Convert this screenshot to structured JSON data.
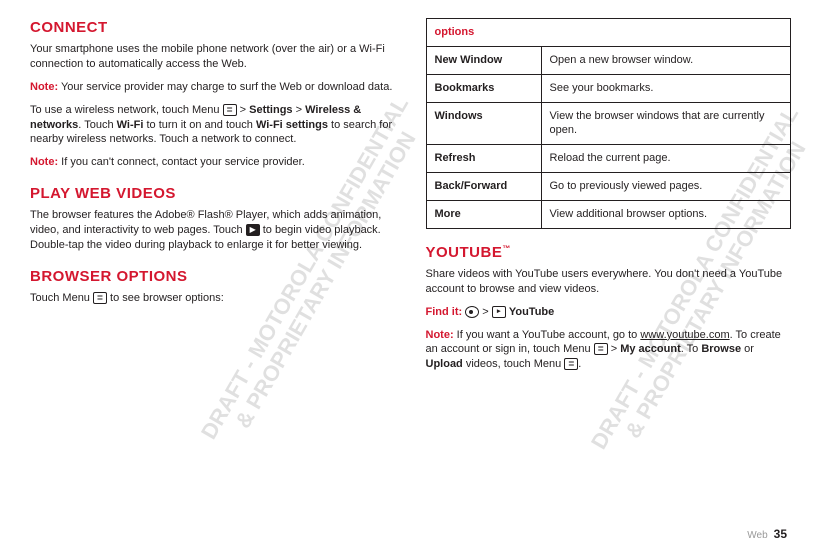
{
  "left": {
    "connect": {
      "heading": "CONNECT",
      "p1": "Your smartphone uses the mobile phone network (over the air) or a Wi-Fi connection to automatically access the Web.",
      "note1_label": "Note:",
      "note1_text": " Your service provider may charge to surf the Web or download data.",
      "p2a": "To use a wireless network, touch Menu ",
      "p2b": " > ",
      "settings": "Settings",
      "p2c": " > ",
      "wireless": "Wireless & networks",
      "p2d": ". Touch ",
      "wifi": "Wi-Fi",
      "p2e": " to turn it on and touch ",
      "wifisettings": "Wi-Fi settings",
      "p2f": " to search for nearby wireless networks. Touch a network to connect.",
      "note2_label": "Note:",
      "note2_text": " If you can't connect, contact your service provider."
    },
    "play": {
      "heading": "PLAY WEB VIDEOS",
      "p1a": "The browser features the Adobe® Flash® Player, which adds animation, video, and interactivity to web pages. Touch ",
      "p1b": " to begin video playback. Double-tap the video during playback to enlarge it for better viewing."
    },
    "browser": {
      "heading": "BROWSER OPTIONS",
      "p1a": "Touch Menu ",
      "p1b": " to see browser options:"
    }
  },
  "right": {
    "table": {
      "header": "options",
      "rows": [
        {
          "label": "New Window",
          "desc": "Open a new browser window."
        },
        {
          "label": "Bookmarks",
          "desc": "See your bookmarks."
        },
        {
          "label": "Windows",
          "desc": "View the browser windows that are currently open."
        },
        {
          "label": "Refresh",
          "desc": "Reload the current page."
        },
        {
          "label": "Back/Forward",
          "desc": "Go to previously viewed pages."
        },
        {
          "label": "More",
          "desc": "View additional browser options."
        }
      ]
    },
    "youtube": {
      "heading": "YOUTUBE",
      "tm": "™",
      "p1": "Share videos with YouTube users everywhere. You don't need a YouTube account to browse and view videos.",
      "find_label": "Find it:",
      "find_sep": " > ",
      "find_app": "YouTube",
      "note_label": "Note:",
      "note_a": " If you want a YouTube account, go to ",
      "note_url": "www.youtube.com",
      "note_b": ". To create an account or sign in, touch Menu ",
      "note_c": " > ",
      "myacct": "My account",
      "note_d": ". To ",
      "browse": "Browse",
      "note_e": " or ",
      "upload": "Upload",
      "note_f": " videos, touch Menu ",
      "note_g": "."
    }
  },
  "footer": {
    "section": "Web",
    "page": "35"
  },
  "watermark": "DRAFT - MOTOROLA CONFIDENTIAL\n& PROPRIETARY INFORMATION",
  "icons": {
    "menu": "≣",
    "play": "▶",
    "yt": "▸"
  }
}
